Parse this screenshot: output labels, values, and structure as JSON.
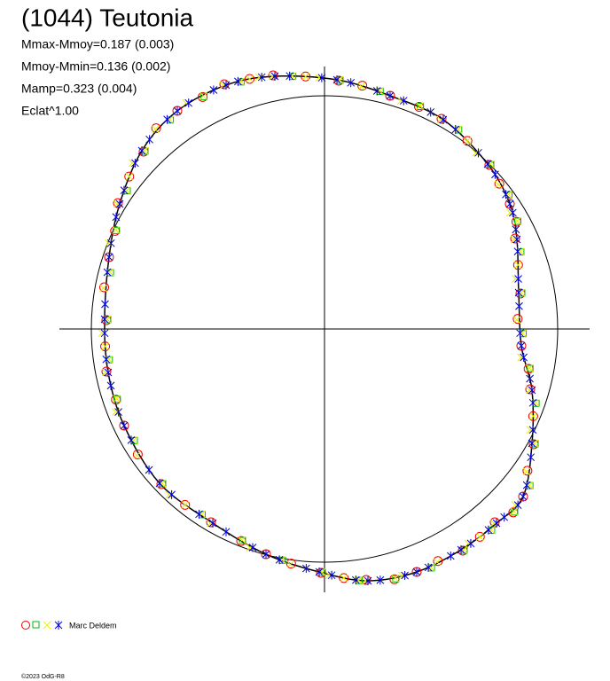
{
  "header": {
    "title": "(1044) Teutonia",
    "stats": [
      "Mmax-Mmoy=0.187 (0.003)",
      "Mmoy-Mmin=0.136 (0.002)",
      "Mamp=0.323 (0.004)",
      "Eclat^1.00"
    ]
  },
  "legend": {
    "author": "Marc Deldem"
  },
  "footer": {
    "copyright": "©2023 OdG-R8"
  }
}
